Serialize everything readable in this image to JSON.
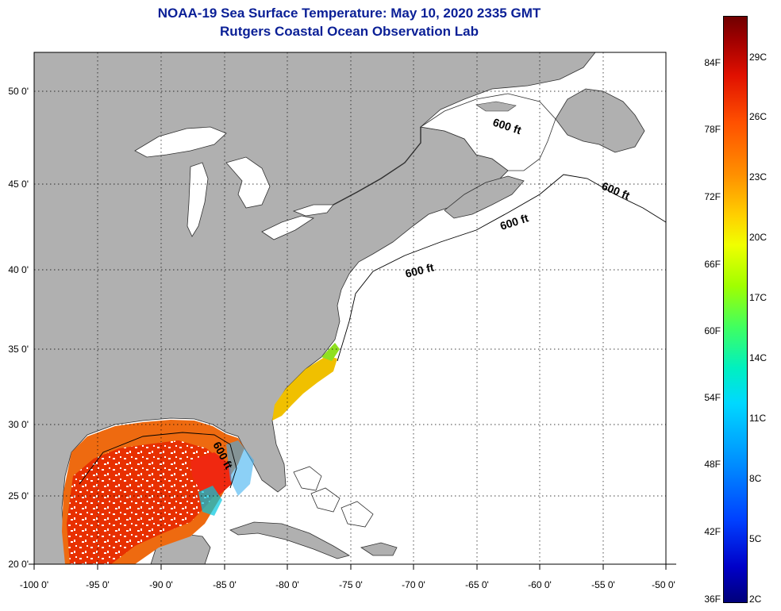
{
  "title": {
    "line1": "NOAA-19 Sea Surface Temperature:  May 10, 2020 2335 GMT",
    "line2": "Rutgers Coastal Ocean Observation Lab"
  },
  "map": {
    "lat_labels": [
      "50 0'",
      "45 0'",
      "40 0'",
      "35 0'",
      "30 0'",
      "25 0'",
      "20 0'"
    ],
    "lon_labels": [
      "-100 0'",
      "-95 0'",
      "-90 0'",
      "-85 0'",
      "-80 0'",
      "-75 0'",
      "-70 0'",
      "-65 0'",
      "-60 0'",
      "-55 0'",
      "-50 0'"
    ],
    "lat_range": [
      20,
      52.5
    ],
    "lon_range": [
      -100,
      -50
    ],
    "isobath_labels": [
      "600 ft",
      "600 ft",
      "600 ft",
      "600 ft",
      "600 ft"
    ]
  },
  "colorbar": {
    "fahrenheit": [
      "84F",
      "78F",
      "72F",
      "66F",
      "60F",
      "54F",
      "48F",
      "42F",
      "36F"
    ],
    "celsius": [
      "29C",
      "26C",
      "23C",
      "20C",
      "17C",
      "14C",
      "11C",
      "8C",
      "5C",
      "2C"
    ]
  },
  "colors": {
    "title": "#0a1f96",
    "land": "#b0b0b0",
    "water": "#ffffff",
    "sst_warm": "#f05000",
    "sst_mid": "#f0c000"
  }
}
